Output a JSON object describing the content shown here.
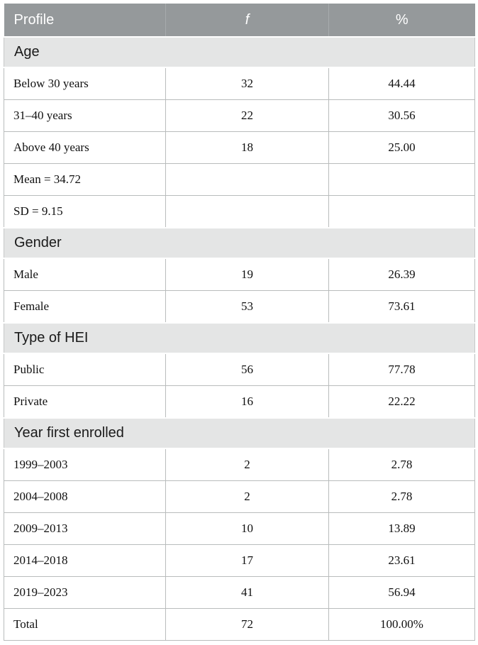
{
  "theme": {
    "header_bg": "#95999b",
    "header_divider": "#a7abad",
    "section_bg": "#e4e5e5",
    "border": "#b9bcbc",
    "text": "#1a1a1a",
    "header_text": "#ffffff",
    "page_bg": "#ffffff"
  },
  "table": {
    "header": {
      "profile": "Profile",
      "f": "f",
      "pct": "%"
    },
    "sections": [
      {
        "title": "Age",
        "rows": [
          {
            "label": "Below 30 years",
            "f": "32",
            "pct": "44.44"
          },
          {
            "label": "31–40 years",
            "f": "22",
            "pct": "30.56"
          },
          {
            "label": "Above 40 years",
            "f": "18",
            "pct": "25.00"
          },
          {
            "label": "Mean = 34.72",
            "f": "",
            "pct": ""
          },
          {
            "label": "SD = 9.15",
            "f": "",
            "pct": ""
          }
        ]
      },
      {
        "title": "Gender",
        "rows": [
          {
            "label": "Male",
            "f": "19",
            "pct": "26.39"
          },
          {
            "label": "Female",
            "f": "53",
            "pct": "73.61"
          }
        ]
      },
      {
        "title": "Type of HEI",
        "rows": [
          {
            "label": "Public",
            "f": "56",
            "pct": "77.78"
          },
          {
            "label": "Private",
            "f": "16",
            "pct": "22.22"
          }
        ]
      },
      {
        "title": "Year first enrolled",
        "rows": [
          {
            "label": "1999–2003",
            "f": "2",
            "pct": "2.78"
          },
          {
            "label": "2004–2008",
            "f": "2",
            "pct": "2.78"
          },
          {
            "label": "2009–2013",
            "f": "10",
            "pct": "13.89"
          },
          {
            "label": "2014–2018",
            "f": "17",
            "pct": "23.61"
          },
          {
            "label": "2019–2023",
            "f": "41",
            "pct": "56.94"
          },
          {
            "label": "Total",
            "f": "72",
            "pct": "100.00%"
          }
        ]
      }
    ]
  }
}
